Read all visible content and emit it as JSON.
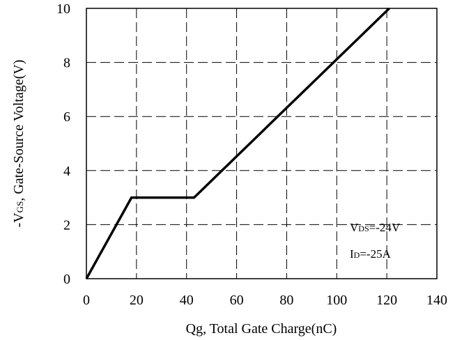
{
  "chart_data": {
    "type": "line",
    "xlabel": "Qg, Total Gate Charge(nC)",
    "ylabel_prefix": "-V",
    "ylabel_sub": "GS",
    "ylabel_suffix": ", Gate-Source Voltage(V)",
    "xlim": [
      0,
      140
    ],
    "ylim": [
      0,
      10
    ],
    "xticks": [
      0,
      20,
      40,
      60,
      80,
      100,
      120,
      140
    ],
    "yticks": [
      0,
      2,
      4,
      6,
      8,
      10
    ],
    "grid": true,
    "grid_style": "dashed",
    "series": [
      {
        "x": [
          0,
          18,
          43,
          121
        ],
        "y": [
          0,
          3.0,
          3.0,
          10.0
        ],
        "color": "#000000"
      }
    ],
    "annotations": [
      {
        "main": "V",
        "sub": "DS",
        "rest": "=-24V"
      },
      {
        "main": "I",
        "sub": "D",
        "rest": "=-25A"
      }
    ]
  }
}
